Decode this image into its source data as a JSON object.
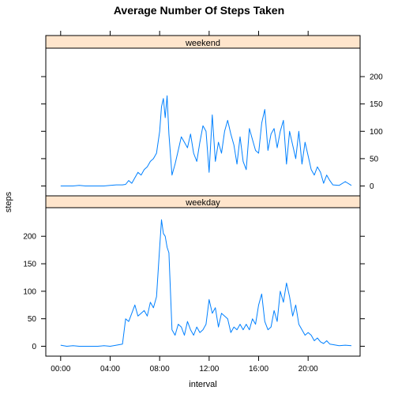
{
  "colors": {
    "line": "#0080ff",
    "strip_bg": "#ffe5cc"
  },
  "chart_data": {
    "type": "line",
    "title": "Average Number Of Steps Taken",
    "xlabel": "interval",
    "ylabel": "steps",
    "xlim": [
      -1.2,
      24.2
    ],
    "ylim": [
      -18,
      252
    ],
    "x_ticks": [
      0,
      4,
      8,
      12,
      16,
      20
    ],
    "x_tick_labels": [
      "00:00",
      "04:00",
      "08:00",
      "12:00",
      "16:00",
      "20:00"
    ],
    "y_ticks": [
      0,
      50,
      100,
      150,
      200
    ],
    "y_tick_labels": [
      "0",
      "50",
      "100",
      "150",
      "200"
    ],
    "grid": false,
    "layout": "two panels stacked vertically",
    "panels": [
      {
        "name": "weekend",
        "x": [
          0,
          0.5,
          1,
          1.5,
          2,
          2.5,
          3,
          3.5,
          4,
          4.5,
          5,
          5.25,
          5.5,
          5.75,
          6,
          6.25,
          6.5,
          6.75,
          7,
          7.25,
          7.5,
          7.75,
          8,
          8.15,
          8.3,
          8.45,
          8.6,
          8.75,
          9,
          9.25,
          9.5,
          9.75,
          10,
          10.25,
          10.5,
          10.75,
          11,
          11.25,
          11.5,
          11.75,
          12,
          12.25,
          12.5,
          12.75,
          13,
          13.25,
          13.5,
          13.75,
          14,
          14.25,
          14.5,
          14.75,
          15,
          15.25,
          15.5,
          15.75,
          16,
          16.25,
          16.5,
          16.75,
          17,
          17.25,
          17.5,
          17.75,
          18,
          18.25,
          18.5,
          18.75,
          19,
          19.25,
          19.5,
          19.75,
          20,
          20.25,
          20.5,
          20.75,
          21,
          21.25,
          21.5,
          21.75,
          22,
          22.5,
          23,
          23.5
        ],
        "values": [
          0,
          0,
          0,
          1,
          0,
          0,
          0,
          0,
          1,
          2,
          2,
          3,
          10,
          5,
          15,
          25,
          20,
          30,
          35,
          45,
          50,
          60,
          100,
          145,
          160,
          125,
          165,
          95,
          20,
          40,
          65,
          90,
          80,
          70,
          95,
          60,
          45,
          80,
          110,
          100,
          25,
          130,
          45,
          80,
          60,
          100,
          120,
          95,
          75,
          40,
          90,
          45,
          30,
          105,
          85,
          65,
          60,
          115,
          140,
          65,
          95,
          105,
          70,
          100,
          120,
          40,
          100,
          75,
          50,
          100,
          40,
          80,
          55,
          30,
          20,
          35,
          25,
          5,
          20,
          10,
          2,
          1,
          8,
          1
        ]
      },
      {
        "name": "weekday",
        "x": [
          0,
          0.5,
          1,
          1.5,
          2,
          2.5,
          3,
          3.5,
          4,
          4.5,
          5,
          5.25,
          5.5,
          5.75,
          6,
          6.25,
          6.5,
          6.75,
          7,
          7.25,
          7.5,
          7.75,
          8,
          8.15,
          8.3,
          8.45,
          8.6,
          8.75,
          9,
          9.25,
          9.5,
          9.75,
          10,
          10.25,
          10.5,
          10.75,
          11,
          11.25,
          11.5,
          11.75,
          12,
          12.25,
          12.5,
          12.75,
          13,
          13.25,
          13.5,
          13.75,
          14,
          14.25,
          14.5,
          14.75,
          15,
          15.25,
          15.5,
          15.75,
          16,
          16.25,
          16.5,
          16.75,
          17,
          17.25,
          17.5,
          17.75,
          18,
          18.25,
          18.5,
          18.75,
          19,
          19.25,
          19.5,
          19.75,
          20,
          20.25,
          20.5,
          20.75,
          21,
          21.25,
          21.5,
          21.75,
          22,
          22.5,
          23,
          23.5
        ],
        "values": [
          2,
          0,
          1,
          0,
          0,
          0,
          0,
          1,
          0,
          2,
          4,
          50,
          45,
          60,
          75,
          55,
          60,
          65,
          55,
          80,
          70,
          90,
          180,
          230,
          205,
          200,
          180,
          170,
          30,
          20,
          40,
          35,
          20,
          45,
          30,
          20,
          35,
          25,
          30,
          40,
          85,
          60,
          70,
          35,
          60,
          55,
          50,
          25,
          35,
          30,
          40,
          30,
          40,
          30,
          50,
          40,
          75,
          95,
          45,
          30,
          35,
          65,
          45,
          100,
          80,
          115,
          90,
          55,
          75,
          40,
          30,
          20,
          25,
          20,
          10,
          15,
          8,
          5,
          10,
          4,
          3,
          1,
          2,
          1
        ]
      }
    ]
  }
}
